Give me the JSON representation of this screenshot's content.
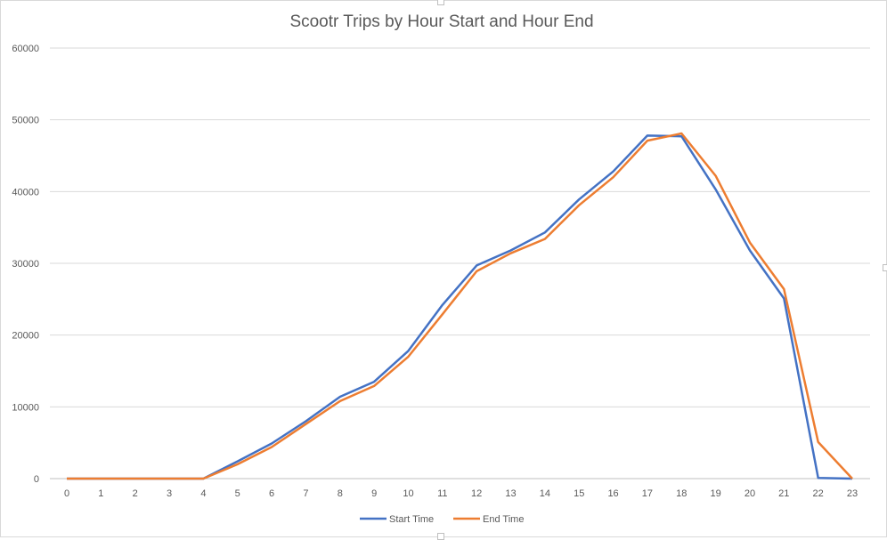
{
  "chart_data": {
    "type": "line",
    "title": "Scootr Trips by Hour Start and Hour End",
    "xlabel": "",
    "ylabel": "",
    "categories": [
      "0",
      "1",
      "2",
      "3",
      "4",
      "5",
      "6",
      "7",
      "8",
      "9",
      "10",
      "11",
      "12",
      "13",
      "14",
      "15",
      "16",
      "17",
      "18",
      "19",
      "20",
      "21",
      "22",
      "23"
    ],
    "ylim": [
      0,
      60000
    ],
    "yticks": [
      "0",
      "10000",
      "20000",
      "30000",
      "40000",
      "50000",
      "60000"
    ],
    "grid": true,
    "legend_position": "bottom",
    "series": [
      {
        "name": "Start Time",
        "color": "#4472c4",
        "values": [
          0,
          0,
          0,
          0,
          0,
          2400,
          4900,
          8000,
          11400,
          13500,
          17800,
          24200,
          29700,
          31800,
          34300,
          38900,
          42800,
          47800,
          47700,
          40300,
          31800,
          25100,
          100,
          0
        ]
      },
      {
        "name": "End Time",
        "color": "#ed7d31",
        "values": [
          0,
          0,
          0,
          0,
          0,
          2000,
          4400,
          7600,
          10800,
          12900,
          17000,
          22900,
          28900,
          31400,
          33400,
          38100,
          42000,
          47100,
          48100,
          42200,
          32900,
          26400,
          5100,
          0
        ]
      }
    ]
  }
}
